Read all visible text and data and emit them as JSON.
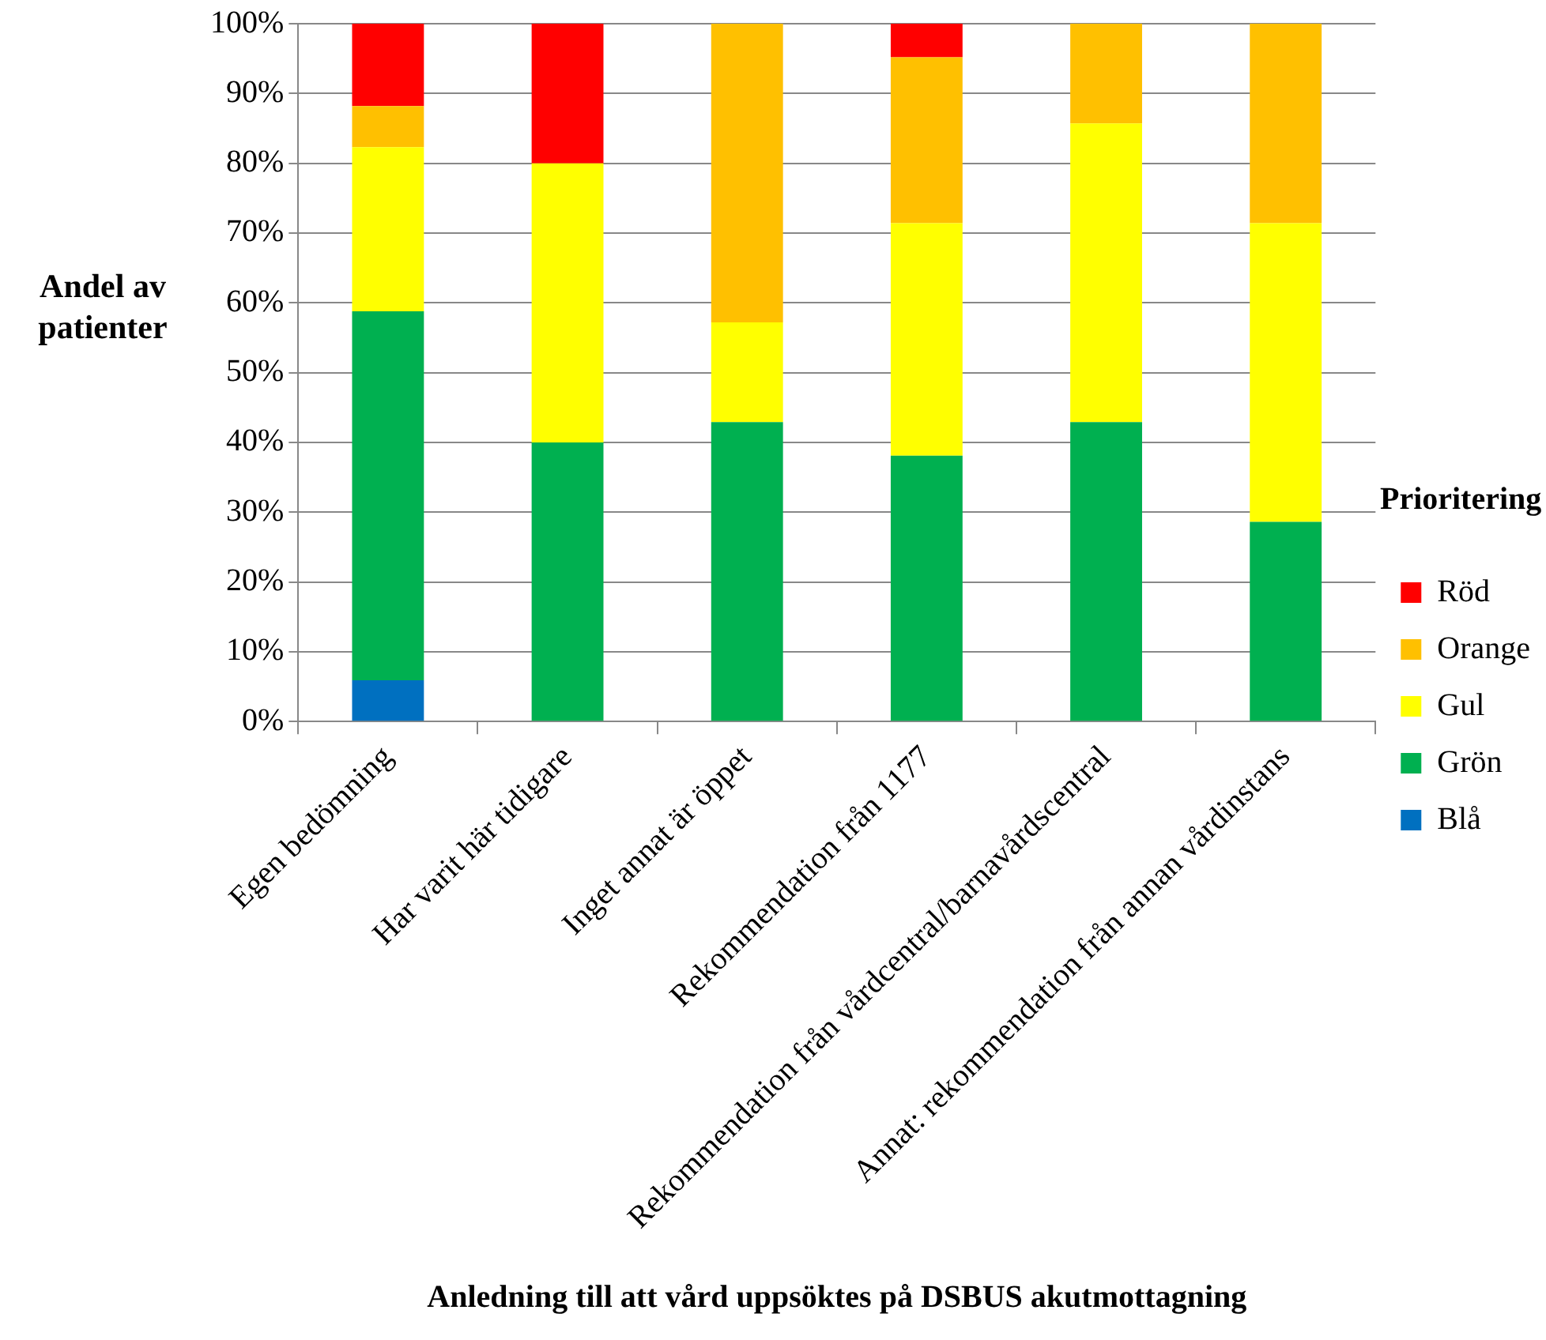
{
  "chart_data": {
    "type": "bar",
    "stacked": true,
    "xlabel": "Anledning till att vård uppsöktes på DSBUS akutmottagning",
    "ylabel": "Andel av patienter",
    "legend_title": "Prioritering",
    "legend": "right",
    "grid": "y",
    "categories": [
      "Egen bedömning",
      "Har varit här tidigare",
      "Inget annat är öppet",
      "Rekommendation från 1177",
      "Rekommendation från vårdcentral/barnavårdscentral",
      "Annat: rekommendation från annan vårdinstans"
    ],
    "series": [
      {
        "name": "Blå",
        "color": "#0070c0",
        "values": [
          5.9,
          0,
          0,
          0,
          0,
          0
        ]
      },
      {
        "name": "Grön",
        "color": "#00b050",
        "values": [
          52.9,
          40,
          42.9,
          38.1,
          42.9,
          28.6
        ]
      },
      {
        "name": "Gul",
        "color": "#ffff00",
        "values": [
          23.5,
          40,
          14.3,
          33.3,
          42.8,
          42.8
        ]
      },
      {
        "name": "Orange",
        "color": "#ffc000",
        "values": [
          5.9,
          0,
          42.8,
          23.8,
          14.3,
          28.6
        ]
      },
      {
        "name": "Röd",
        "color": "#ff0000",
        "values": [
          11.8,
          20,
          0,
          4.8,
          0,
          0
        ]
      }
    ],
    "ylim": [
      0,
      100
    ],
    "yticks": [
      {
        "value": 0,
        "label": "0%"
      },
      {
        "value": 10,
        "label": "10%"
      },
      {
        "value": 20,
        "label": "20%"
      },
      {
        "value": 30,
        "label": "30%"
      },
      {
        "value": 40,
        "label": "40%"
      },
      {
        "value": 50,
        "label": "50%"
      },
      {
        "value": 60,
        "label": "60%"
      },
      {
        "value": 70,
        "label": "70%"
      },
      {
        "value": 80,
        "label": "80%"
      },
      {
        "value": 90,
        "label": "90%"
      },
      {
        "value": 100,
        "label": "100%"
      }
    ]
  }
}
